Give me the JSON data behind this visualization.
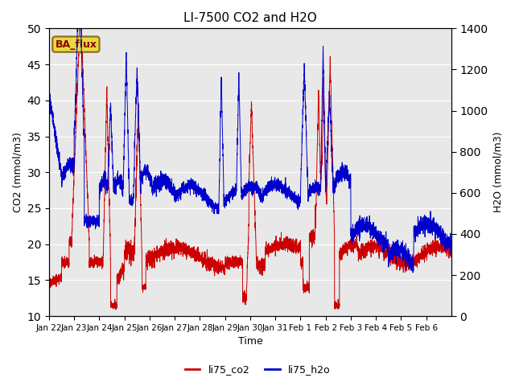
{
  "title": "LI-7500 CO2 and H2O",
  "xlabel": "Time",
  "ylabel_left": "CO2 (mmol/m3)",
  "ylabel_right": "H2O (mmol/m3)",
  "ylim_left": [
    10,
    50
  ],
  "ylim_right": [
    0,
    1400
  ],
  "annotation_text": "BA_flux",
  "bg_color": "#e8e8e8",
  "co2_color": "#cc0000",
  "h2o_color": "#0000cc",
  "legend_co2": "li75_co2",
  "legend_h2o": "li75_h2o",
  "xtick_labels": [
    "Jan 22",
    "Jan 23",
    "Jan 24",
    "Jan 25",
    "Jan 26",
    "Jan 27",
    "Jan 28",
    "Jan 29",
    "Jan 30",
    "Jan 31",
    "Feb 1",
    "Feb 2",
    "Feb 3",
    "Feb 4",
    "Feb 5",
    "Feb 6"
  ],
  "yticks_left": [
    10,
    15,
    20,
    25,
    30,
    35,
    40,
    45,
    50
  ],
  "yticks_right": [
    0,
    200,
    400,
    600,
    800,
    1000,
    1200,
    1400
  ],
  "n_points": 5000,
  "seed": 7
}
